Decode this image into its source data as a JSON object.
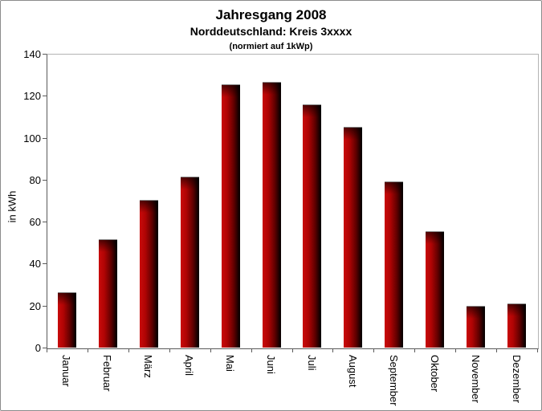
{
  "header": {
    "title": "Jahresgang 2008",
    "subtitle": "Norddeutschland: Kreis 3xxxx",
    "note": "(normiert auf 1kWp)"
  },
  "chart_data": {
    "type": "bar",
    "title": "Jahresgang 2008",
    "subtitle": "Norddeutschland: Kreis 3xxxx",
    "note": "(normiert auf 1kWp)",
    "ylabel": "in kWh",
    "xlabel": "",
    "categories": [
      "Januar",
      "Februar",
      "März",
      "April",
      "Mai",
      "Juni",
      "Juli",
      "August",
      "September",
      "Oktober",
      "November",
      "Dezember"
    ],
    "values": [
      26.5,
      51.5,
      70.5,
      81.5,
      125.5,
      126.5,
      116,
      105,
      79,
      55.5,
      20,
      21
    ],
    "ylim": [
      0,
      140
    ],
    "yticks": [
      0,
      20,
      40,
      60,
      80,
      100,
      120,
      140
    ],
    "grid": false,
    "legend": "none",
    "bar_orientation": "vertical",
    "x_label_rotation_deg": 90
  },
  "colors": {
    "bar_red": "#c90b0b",
    "bar_mid": "#b00404",
    "bar_dark": "#610000",
    "bar_black": "#0d0000",
    "axis": "#5a5a5a",
    "plot_border": "#b4b4b4",
    "text": "#000000",
    "frame_border": "#8c8c8c",
    "background": "#ffffff"
  }
}
